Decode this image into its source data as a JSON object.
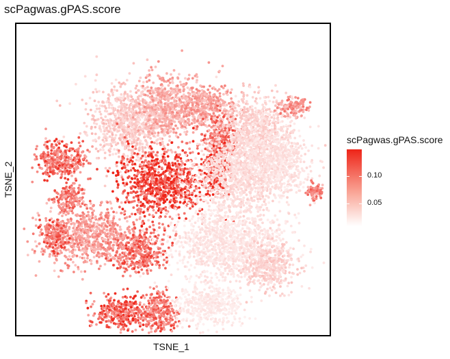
{
  "chart_data": {
    "type": "scatter",
    "title": "scPagwas.gPAS.score",
    "xlabel": "TSNE_1",
    "ylabel": "TSNE_2",
    "color_scale": {
      "name": "scPagwas.gPAS.score",
      "low_color": "#ffffff",
      "high_color": "#ee2418",
      "range": [
        0.0,
        0.15
      ],
      "ticks": [
        0.05,
        0.1
      ],
      "tick_labels": [
        "0.05",
        "0.10"
      ]
    },
    "legend_position": "right",
    "grid": false,
    "clusters": [
      {
        "center": [
          -12,
          14
        ],
        "spread": [
          10,
          9
        ],
        "score": 0.035
      },
      {
        "center": [
          -2,
          18
        ],
        "spread": [
          6,
          8
        ],
        "score": 0.055
      },
      {
        "center": [
          8,
          18
        ],
        "spread": [
          8,
          6
        ],
        "score": 0.06
      },
      {
        "center": [
          13,
          10
        ],
        "spread": [
          4,
          6
        ],
        "score": 0.09
      },
      {
        "center": [
          22,
          12
        ],
        "spread": [
          8,
          8
        ],
        "score": 0.03
      },
      {
        "center": [
          32,
          18
        ],
        "spread": [
          4,
          2
        ],
        "score": 0.07
      },
      {
        "center": [
          -30,
          4
        ],
        "spread": [
          6,
          5
        ],
        "score": 0.1
      },
      {
        "center": [
          -28,
          -6
        ],
        "spread": [
          4,
          3
        ],
        "score": 0.09
      },
      {
        "center": [
          -3,
          -2
        ],
        "spread": [
          11,
          8
        ],
        "score": 0.12
      },
      {
        "center": [
          12,
          1
        ],
        "spread": [
          3,
          5
        ],
        "score": 0.13
      },
      {
        "center": [
          18,
          0
        ],
        "spread": [
          10,
          9
        ],
        "score": 0.025
      },
      {
        "center": [
          28,
          4
        ],
        "spread": [
          8,
          8
        ],
        "score": 0.02
      },
      {
        "center": [
          38,
          -4
        ],
        "spread": [
          2,
          2
        ],
        "score": 0.08
      },
      {
        "center": [
          -22,
          -16
        ],
        "spread": [
          12,
          7
        ],
        "score": 0.065
      },
      {
        "center": [
          -32,
          -16
        ],
        "spread": [
          3,
          4
        ],
        "score": 0.1
      },
      {
        "center": [
          -9,
          -20
        ],
        "spread": [
          6,
          5
        ],
        "score": 0.095
      },
      {
        "center": [
          15,
          -18
        ],
        "spread": [
          14,
          9
        ],
        "score": 0.018
      },
      {
        "center": [
          26,
          -24
        ],
        "spread": [
          6,
          6
        ],
        "score": 0.03
      },
      {
        "center": [
          -14,
          -36
        ],
        "spread": [
          7,
          4
        ],
        "score": 0.105
      },
      {
        "center": [
          -4,
          -36
        ],
        "spread": [
          5,
          5
        ],
        "score": 0.09
      },
      {
        "center": [
          10,
          -34
        ],
        "spread": [
          8,
          5
        ],
        "score": 0.015
      }
    ],
    "xlim": [
      -42,
      42
    ],
    "ylim": [
      -42,
      40
    ]
  }
}
